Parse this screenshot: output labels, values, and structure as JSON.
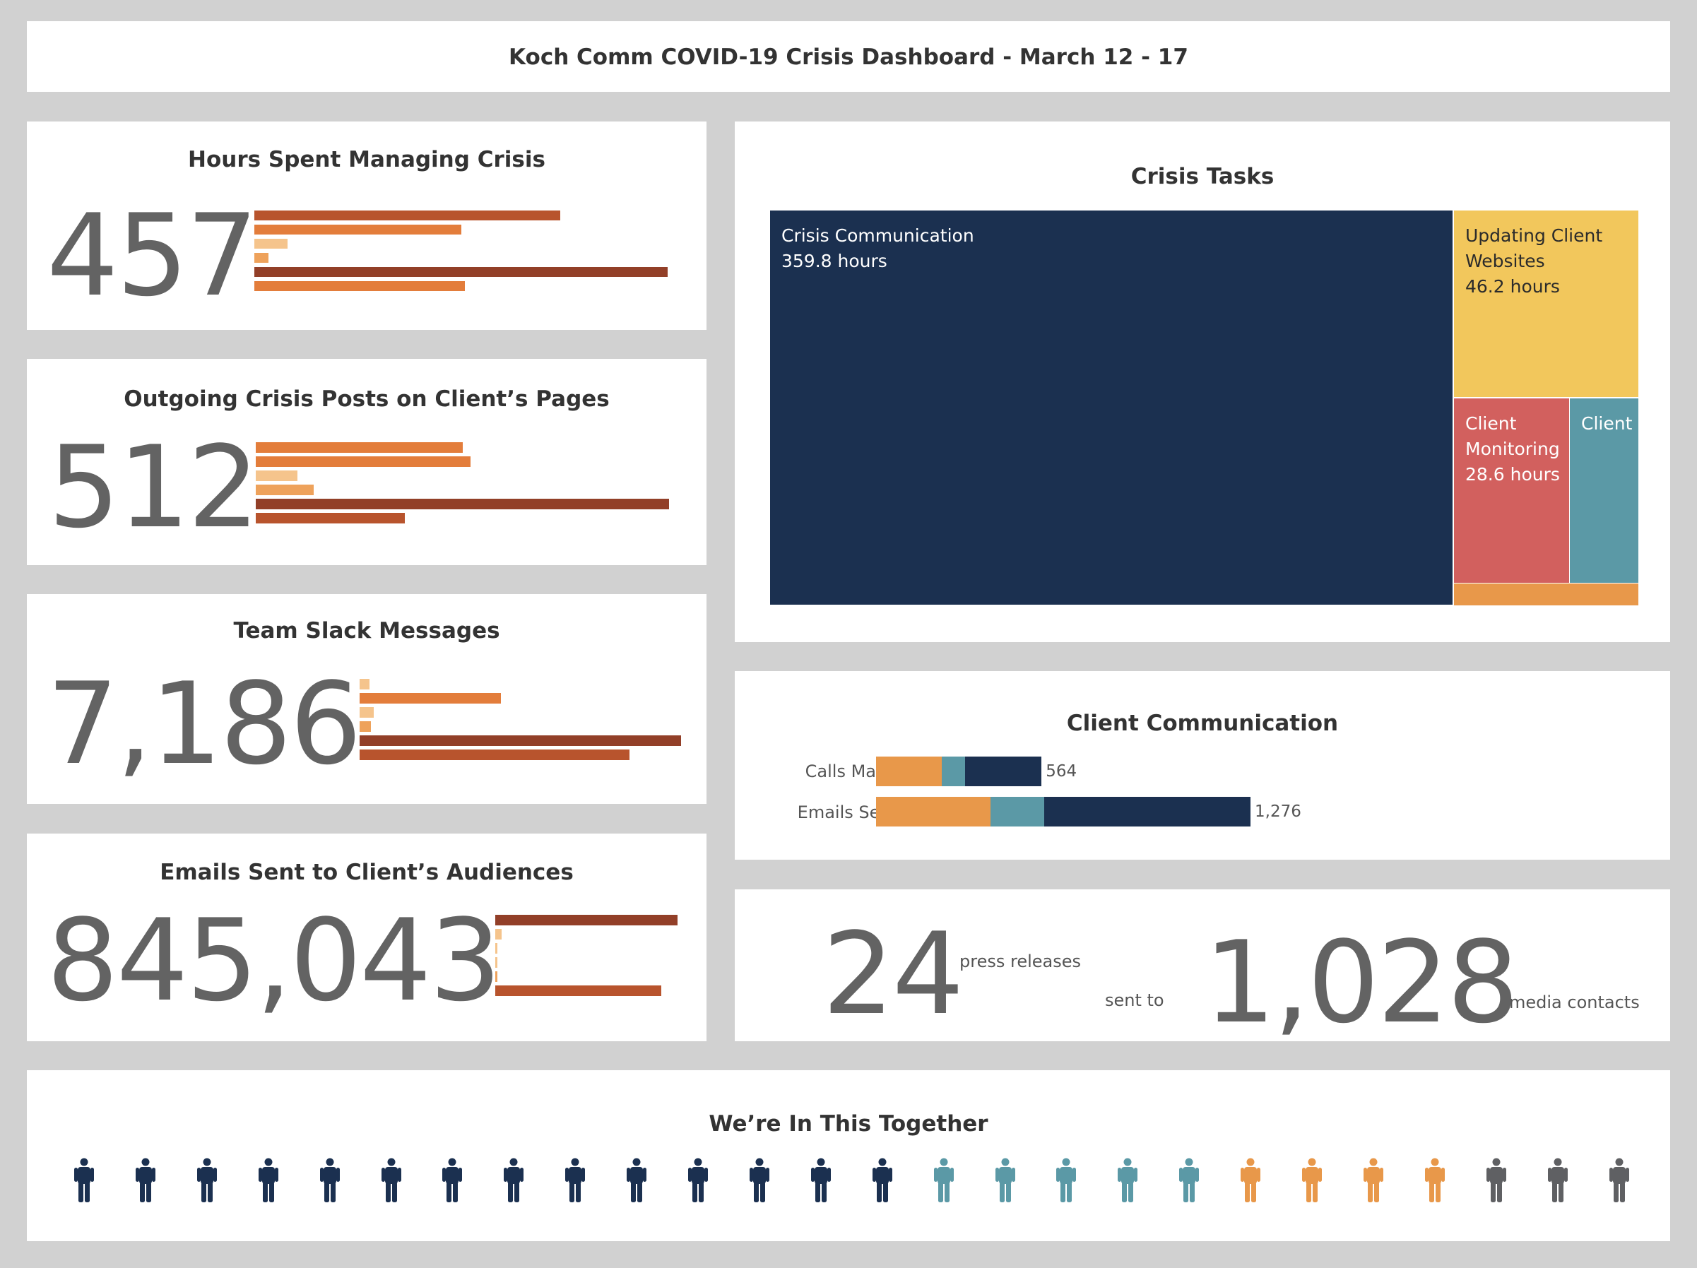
{
  "header": {
    "title": "Koch Comm COVID-19 Crisis Dashboard - March 12 - 17"
  },
  "colors": {
    "navy": "#1b3050",
    "teal": "#5b99a6",
    "orange": "#e8984a",
    "yellow": "#f2c75c",
    "red": "#d2605e",
    "gray": "#5f6063",
    "dark_rust": "#923f28",
    "rust": "#b8542d",
    "bright_orange": "#e37d3b",
    "peach": "#f5c48c",
    "light_orange": "#eea25b"
  },
  "kpis": [
    {
      "title": "Hours Spent Managing Crisis",
      "value": "457",
      "bars": [
        {
          "value": 0.74,
          "color": "rust"
        },
        {
          "value": 0.5,
          "color": "bright_orange"
        },
        {
          "value": 0.08,
          "color": "peach"
        },
        {
          "value": 0.035,
          "color": "light_orange"
        },
        {
          "value": 1.0,
          "color": "dark_rust"
        },
        {
          "value": 0.51,
          "color": "bright_orange"
        }
      ]
    },
    {
      "title": "Outgoing Crisis Posts on Client’s Pages",
      "value": "512",
      "bars": [
        {
          "value": 0.5,
          "color": "bright_orange"
        },
        {
          "value": 0.52,
          "color": "bright_orange"
        },
        {
          "value": 0.1,
          "color": "peach"
        },
        {
          "value": 0.14,
          "color": "light_orange"
        },
        {
          "value": 1.0,
          "color": "dark_rust"
        },
        {
          "value": 0.36,
          "color": "rust"
        }
      ]
    },
    {
      "title": "Team Slack Messages",
      "value": "7,186",
      "bars": [
        {
          "value": 0.03,
          "color": "peach"
        },
        {
          "value": 0.44,
          "color": "bright_orange"
        },
        {
          "value": 0.045,
          "color": "peach"
        },
        {
          "value": 0.035,
          "color": "light_orange"
        },
        {
          "value": 1.0,
          "color": "dark_rust"
        },
        {
          "value": 0.84,
          "color": "rust"
        }
      ]
    },
    {
      "title": "Emails Sent to Client’s Audiences",
      "value": "845,043",
      "bars": [
        {
          "value": 1.0,
          "color": "dark_rust"
        },
        {
          "value": 0.035,
          "color": "peach"
        },
        {
          "value": 0.012,
          "color": "peach"
        },
        {
          "value": 0.012,
          "color": "peach"
        },
        {
          "value": 0.012,
          "color": "light_orange"
        },
        {
          "value": 0.91,
          "color": "rust"
        }
      ]
    }
  ],
  "crisis_tasks": {
    "title": "Crisis Tasks",
    "items": [
      {
        "label": "Crisis Communication\n359.8 hours",
        "value": 359.8,
        "color": "navy"
      },
      {
        "label": "Updating Client\nWebsites\n46.2 hours",
        "value": 46.2,
        "color": "yellow"
      },
      {
        "label": "Client\nMonitoring\n28.6 hours",
        "value": 28.6,
        "color": "red"
      },
      {
        "label": "Client",
        "value": 18.0,
        "color": "teal"
      },
      {
        "label": "",
        "value": 4.4,
        "color": "orange"
      }
    ]
  },
  "chart_data": {
    "type": "bar",
    "title": "Client Communication",
    "stacked": true,
    "orientation": "horizontal",
    "categories": [
      "Calls Made",
      "Emails Sent"
    ],
    "totals": [
      564,
      1276
    ],
    "total_labels": [
      "564",
      "1,276"
    ],
    "series": [
      {
        "color": "#e8984a",
        "values": [
          223,
          390
        ]
      },
      {
        "color": "#5b99a6",
        "values": [
          81,
          183
        ]
      },
      {
        "color": "#1b3050",
        "values": [
          260,
          703
        ]
      }
    ]
  },
  "press": {
    "releases_value": "24",
    "releases_label": "press releases",
    "connector": "sent to",
    "contacts_value": "1,028",
    "contacts_label": "media contacts"
  },
  "together": {
    "title": "We’re In This Together",
    "people_colors": [
      "navy",
      "navy",
      "navy",
      "navy",
      "navy",
      "navy",
      "navy",
      "navy",
      "navy",
      "navy",
      "navy",
      "navy",
      "navy",
      "navy",
      "teal",
      "teal",
      "teal",
      "teal",
      "teal",
      "orange",
      "orange",
      "orange",
      "orange",
      "gray",
      "gray",
      "gray"
    ]
  }
}
